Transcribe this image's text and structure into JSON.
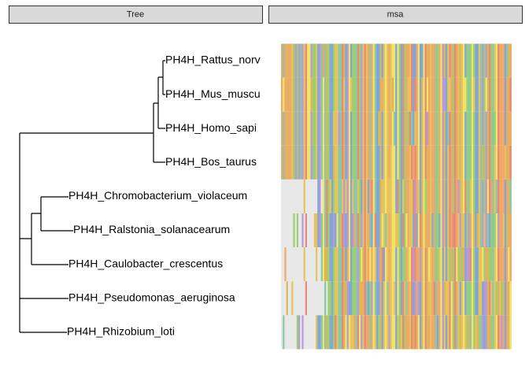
{
  "panels": {
    "tree": {
      "title": "Tree"
    },
    "msa": {
      "title": "msa"
    }
  },
  "tips": [
    "PH4H_Rattus_norv",
    "PH4H_Mus_muscu",
    "PH4H_Homo_sapi",
    "PH4H_Bos_taurus",
    "PH4H_Chromobacterium_violaceum",
    "PH4H_Ralstonia_solanacearum",
    "PH4H_Caulobacter_crescentus",
    "PH4H_Pseudomonas_aeruginosa",
    "PH4H_Rhizobium_loti"
  ]
}
